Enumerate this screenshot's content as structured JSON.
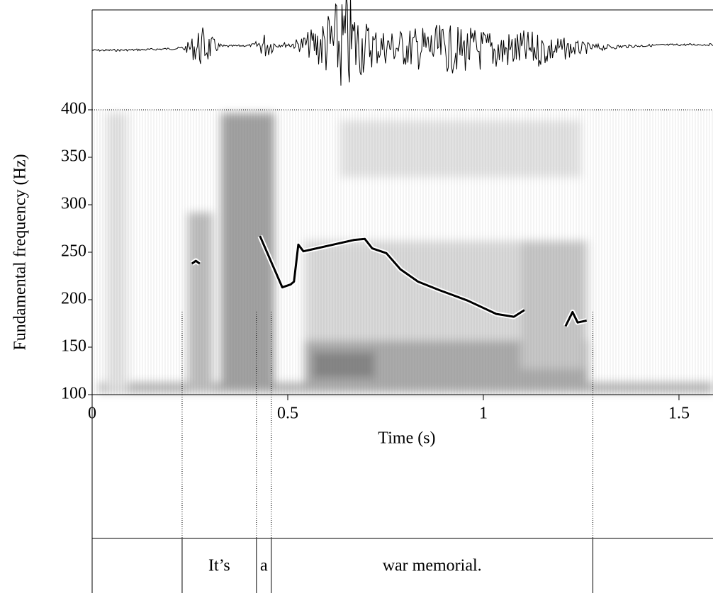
{
  "chart_data": {
    "type": "line",
    "x_label": "Time (s)",
    "y_label": "Fundamental frequency (Hz)",
    "xlim": [
      0,
      1.587
    ],
    "ylim": [
      100,
      400
    ],
    "xticks": [
      0,
      0.5,
      1,
      1.5
    ],
    "yticks": [
      100,
      150,
      200,
      250,
      300,
      350,
      400
    ],
    "x": [
      0.255,
      0.265,
      0.275,
      null,
      0.429,
      0.486,
      0.507,
      0.516,
      0.527,
      0.54,
      0.562,
      0.616,
      0.67,
      0.697,
      0.716,
      0.752,
      0.788,
      0.833,
      0.888,
      0.96,
      1.033,
      1.078,
      1.105,
      null,
      1.21,
      1.228,
      1.241,
      1.264
    ],
    "series": [
      {
        "color": "#000000",
        "values": [
          238,
          241,
          238,
          null,
          267,
          213,
          216,
          219,
          258,
          251,
          253,
          258,
          263,
          264,
          254,
          249,
          232,
          219,
          210,
          199,
          185,
          182,
          189,
          null,
          172,
          187,
          176,
          178
        ]
      }
    ],
    "tier": {
      "boundaries": [
        0.23,
        0.42,
        0.458,
        1.28
      ],
      "labels": [
        "It’s",
        "a",
        "war memorial."
      ]
    }
  }
}
